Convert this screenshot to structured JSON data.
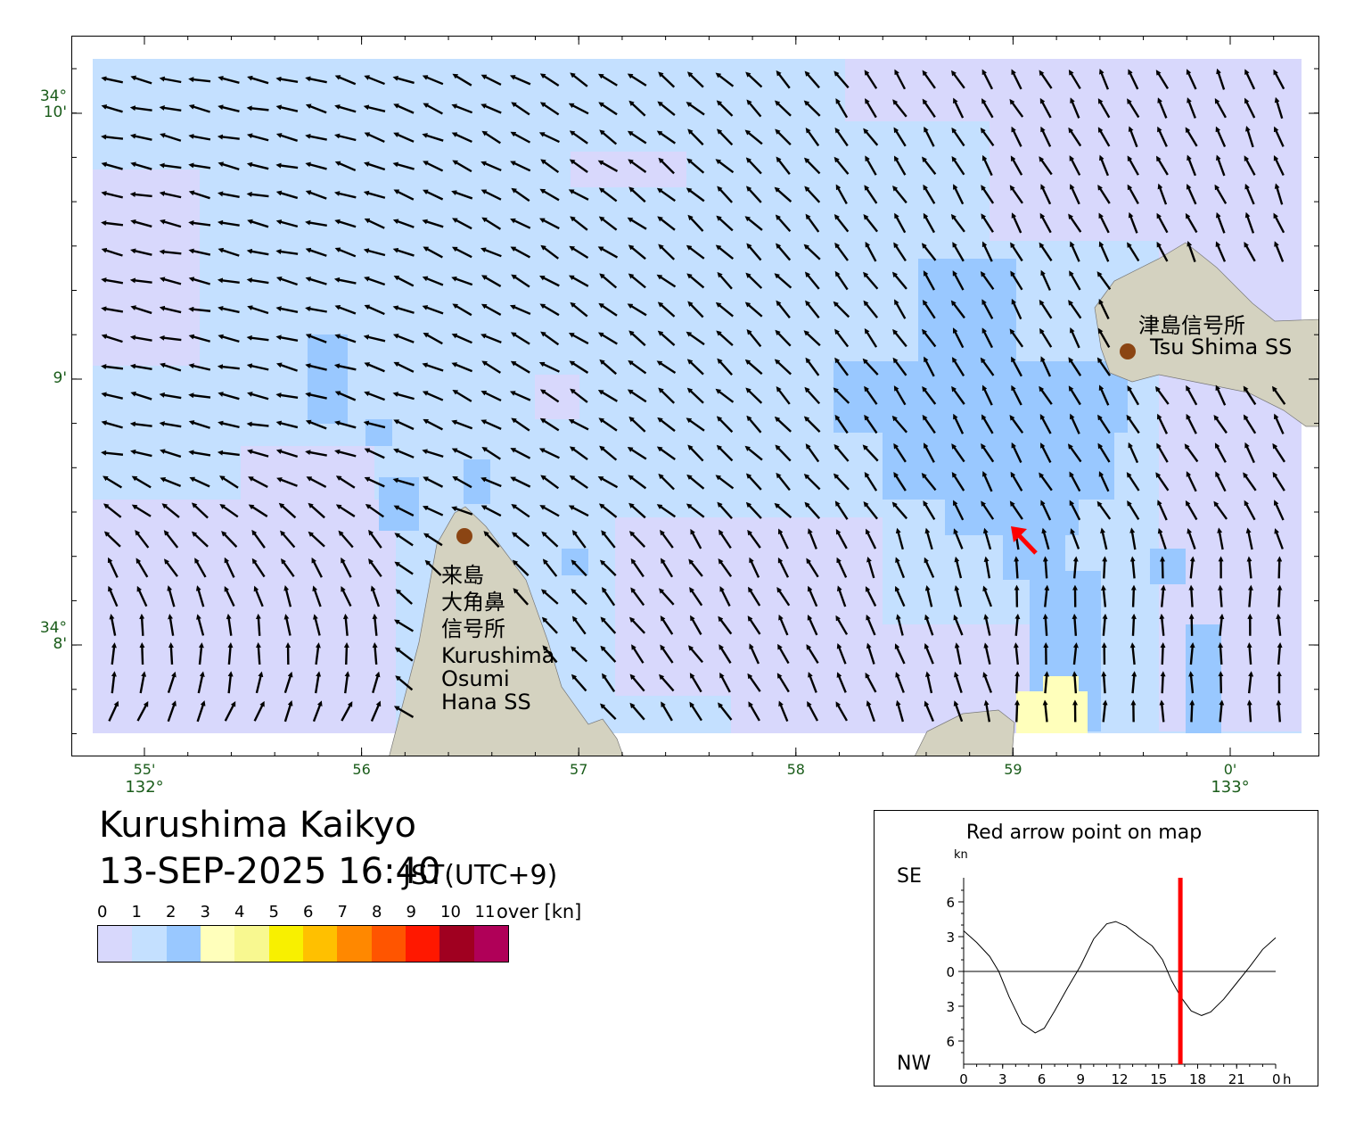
{
  "title": "Kurushima Kaikyo",
  "datetime": "13-SEP-2025 16:40",
  "timezone": "JST(UTC+9)",
  "map": {
    "lon_ticks": [
      {
        "label": "55'",
        "deg": "132°",
        "lon_min": 55
      },
      {
        "label": "56",
        "lon_min": 56
      },
      {
        "label": "57",
        "lon_min": 57
      },
      {
        "label": "58",
        "lon_min": 58
      },
      {
        "label": "59",
        "lon_min": 59
      },
      {
        "label": "0'",
        "deg": "133°",
        "lon_min": 60
      }
    ],
    "lat_ticks": [
      {
        "label": "10'",
        "deg": "34°",
        "lat_min": 10
      },
      {
        "label": "9'",
        "lat_min": 9
      },
      {
        "label": "8'",
        "deg": "34°",
        "lat_min": 8
      }
    ],
    "stations": [
      {
        "name_ja": "津島信号所",
        "name_en": "Tsu Shima SS"
      },
      {
        "name_ja_lines": [
          "来島",
          "大角鼻",
          "信号所"
        ],
        "name_en_lines": [
          "Kurushima",
          "Osumi",
          "Hana SS"
        ]
      }
    ],
    "land_color": "#d4d2c0",
    "station_color": "#8b4513",
    "marker_color": "#ff0000"
  },
  "legend": {
    "labels": [
      "0",
      "1",
      "2",
      "3",
      "4",
      "5",
      "6",
      "7",
      "8",
      "9",
      "10",
      "11"
    ],
    "unit": "over [kn]",
    "colors": [
      "#d8d8fc",
      "#c4e0ff",
      "#99c8ff",
      "#ffffbb",
      "#f8f890",
      "#f8f000",
      "#ffc000",
      "#ff8800",
      "#ff5500",
      "#ff1800",
      "#a00020",
      "#b00058"
    ]
  },
  "chart_data": {
    "type": "line",
    "title": "Red arrow point on map",
    "ylabel": "kn",
    "y_top_label": "SE",
    "y_bottom_label": "NW",
    "xlabel": "h",
    "xlim": [
      0,
      24
    ],
    "ylim": [
      -8,
      8
    ],
    "x_ticks": [
      "0",
      "3",
      "6",
      "9",
      "12",
      "15",
      "18",
      "21",
      "0"
    ],
    "y_ticks": [
      "6",
      "3",
      "0",
      "3",
      "6"
    ],
    "current_time_hour": 16.67,
    "current_time_color": "#ff0000",
    "x": [
      0,
      1,
      2,
      2.7,
      3.5,
      4.5,
      5.5,
      6.2,
      7,
      8,
      9,
      10,
      11,
      11.7,
      12.5,
      13.5,
      14.5,
      15.3,
      16,
      16.7,
      17.5,
      18.3,
      19,
      20,
      21,
      22,
      23,
      24
    ],
    "values": [
      3.5,
      2.5,
      1.3,
      0,
      -2.2,
      -4.5,
      -5.3,
      -4.9,
      -3.4,
      -1.4,
      0.5,
      2.8,
      4.1,
      4.3,
      3.9,
      3.0,
      2.2,
      1.0,
      -0.8,
      -2.2,
      -3.4,
      -3.8,
      -3.5,
      -2.4,
      -1.0,
      0.4,
      1.9,
      2.9
    ]
  }
}
